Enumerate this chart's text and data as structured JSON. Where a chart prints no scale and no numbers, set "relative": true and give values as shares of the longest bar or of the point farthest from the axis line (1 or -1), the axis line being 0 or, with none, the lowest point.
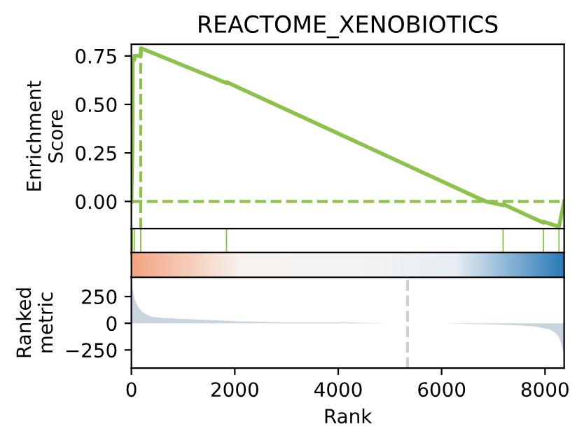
{
  "chart_data": [
    {
      "type": "line",
      "title": "REACTOME_XENOBIOTICS",
      "ylabel": "Enrichment\nScore",
      "tick_labels": "y",
      "xlim": [
        0,
        8370
      ],
      "ylim": [
        -0.14,
        0.81
      ],
      "yticks": [
        {
          "value": -0.0,
          "label": "0.00"
        },
        {
          "value": 0.25,
          "label": "0.25"
        },
        {
          "value": 0.5,
          "label": "0.50"
        },
        {
          "value": 0.75,
          "label": "0.75"
        }
      ],
      "series": [
        {
          "color": "#8bc34a",
          "x": [
            0,
            20,
            25,
            55,
            60,
            180,
            185,
            1840,
            1845,
            6850,
            7190,
            7195,
            7970,
            7975,
            8270,
            8275,
            8370
          ],
          "values": [
            0.0,
            0.3,
            0.73,
            0.73,
            0.75,
            0.75,
            0.79,
            0.61,
            0.615,
            0.0,
            -0.02,
            -0.015,
            -0.11,
            -0.105,
            -0.13,
            -0.125,
            0.0
          ]
        }
      ],
      "ref_lines": [
        {
          "axis": "y",
          "value": 0,
          "color": "#8bc34a",
          "line_style": "dashed"
        },
        {
          "axis": "x",
          "value": 180,
          "color": "#8bc34a",
          "line_style": "dashed"
        }
      ]
    },
    {
      "type": "bar",
      "relative": true,
      "tick_labels": false,
      "xlim": [
        0,
        8370
      ],
      "series": [
        {
          "color": "#8bc34a",
          "x": [
            20,
            55,
            180,
            1840,
            7190,
            7970,
            8270
          ],
          "values": [
            1,
            1,
            1,
            1,
            1,
            1,
            1
          ]
        }
      ]
    },
    {
      "type": "area",
      "xlabel": "Rank",
      "ylabel": "Ranked\nmetric",
      "xlim": [
        0,
        8370
      ],
      "xticks": [
        0,
        2000,
        4000,
        6000,
        8000
      ],
      "ylim": [
        -420,
        430
      ],
      "yticks": [
        {
          "value": -250,
          "label": "−250"
        },
        0,
        250
      ],
      "series": [
        {
          "color": "#c9d4df",
          "x": [
            0,
            20,
            60,
            120,
            200,
            300,
            400,
            600,
            1000,
            1500,
            2000,
            3000,
            4000,
            5000,
            5340,
            6000,
            7000,
            7500,
            7800,
            8000,
            8100,
            8200,
            8270,
            8320,
            8370
          ],
          "values": [
            430,
            330,
            230,
            160,
            110,
            80,
            60,
            50,
            40,
            30,
            20,
            10,
            10,
            0,
            0,
            0,
            -10,
            -20,
            -30,
            -50,
            -60,
            -90,
            -130,
            -200,
            -300
          ]
        }
      ],
      "ref_lines": [
        {
          "axis": "x",
          "value": 5340,
          "color": "#c9d0d8",
          "line_style": "dashed"
        }
      ]
    }
  ]
}
